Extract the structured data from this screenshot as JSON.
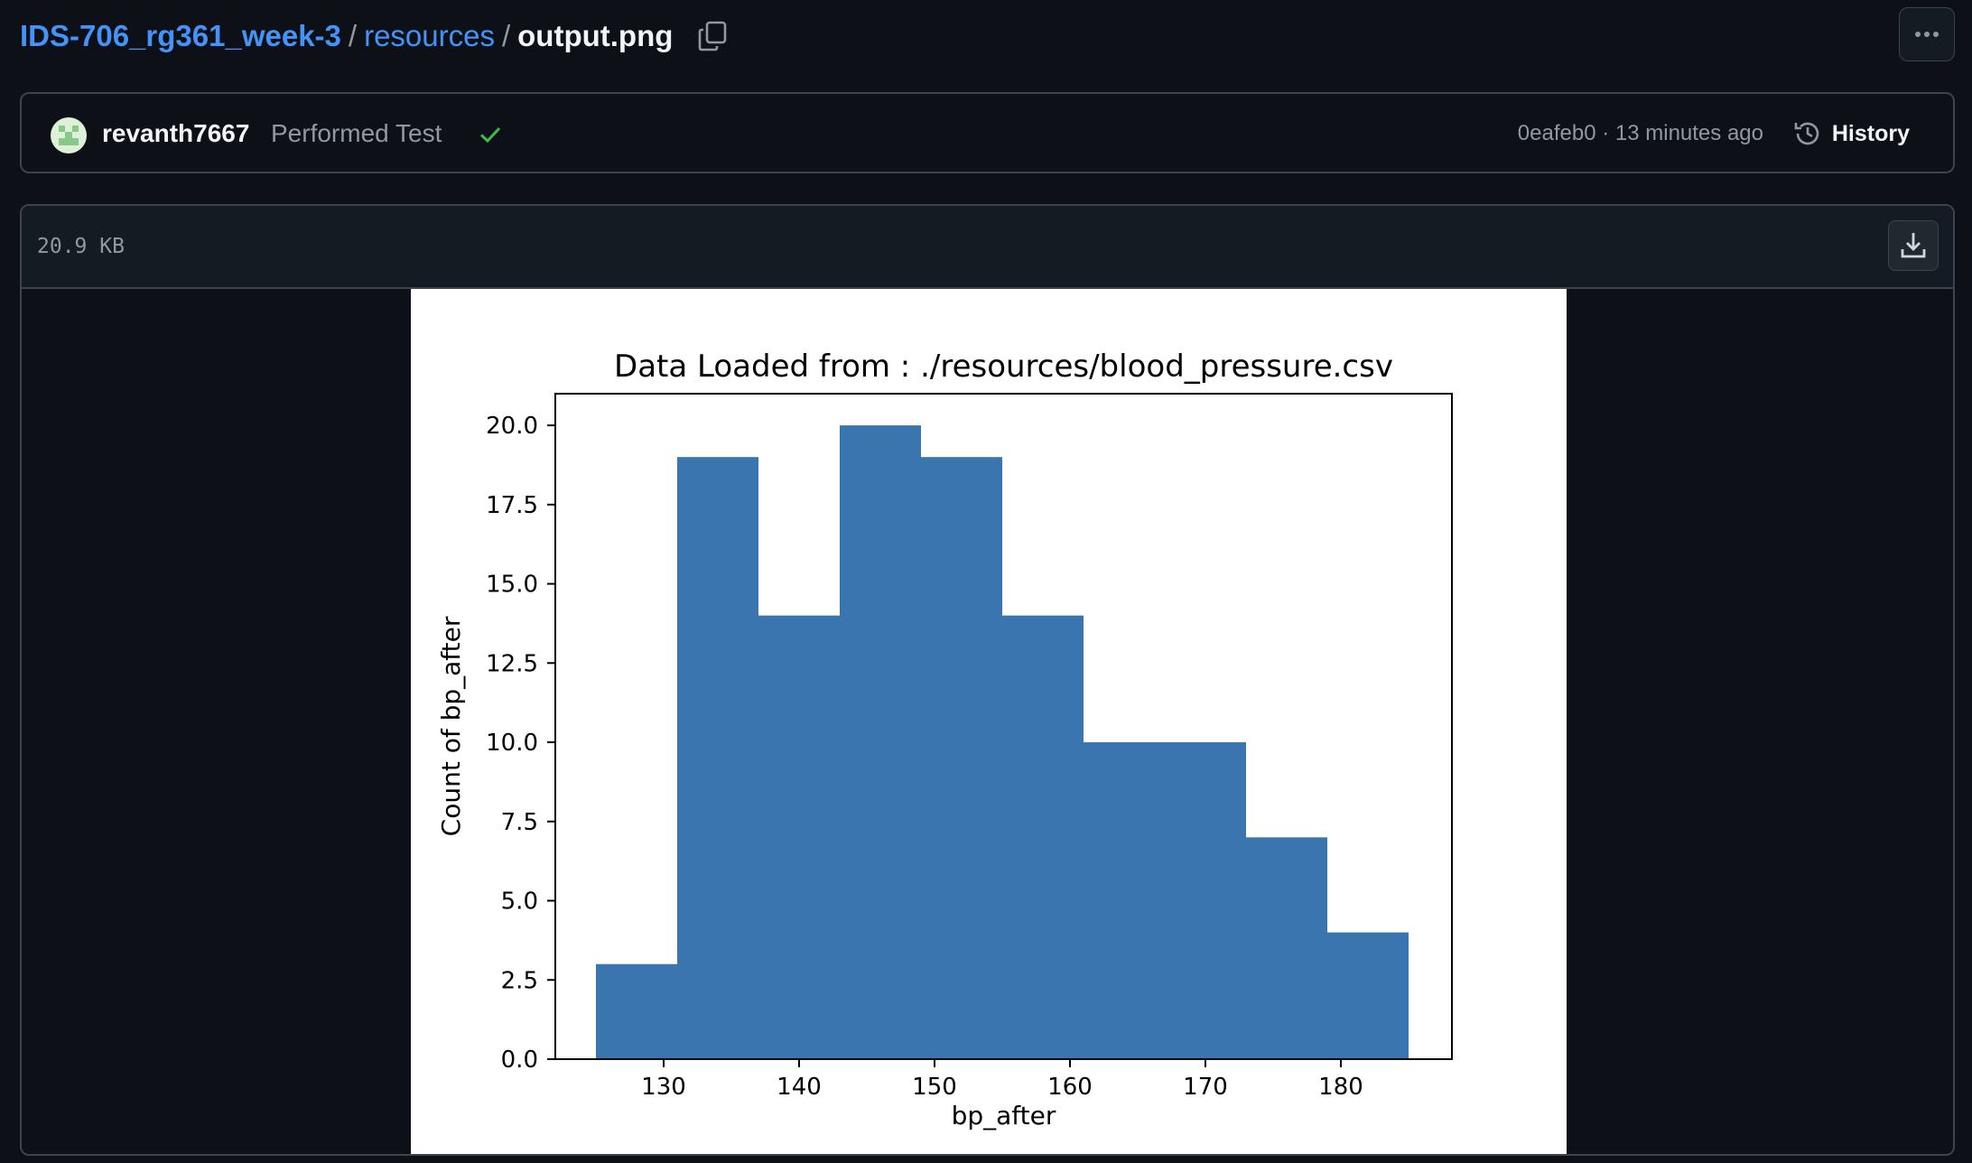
{
  "breadcrumb": {
    "repo": "IDS-706_rg361_week-3",
    "sep": "/",
    "folder": "resources",
    "file": "output.png"
  },
  "icons": {
    "copy": "copy-icon",
    "more": "kebab-horizontal-icon",
    "check": "check-icon",
    "history": "history-icon",
    "download": "download-icon"
  },
  "commit": {
    "author": "revanth7667",
    "message": "Performed Test",
    "meta": "0eafeb0 · 13 minutes ago",
    "history_label": "History"
  },
  "colors": {
    "link": "#4493f8",
    "success": "#3fb950",
    "bar": "#3b75af"
  },
  "file": {
    "size": "20.9 KB"
  },
  "chart_data": {
    "type": "bar",
    "title": "Data Loaded from : ./resources/blood_pressure.csv",
    "xlabel": "bp_after",
    "ylabel": "Count of bp_after",
    "bin_edges": [
      125,
      131,
      137,
      143,
      149,
      155,
      161,
      167,
      173,
      179,
      185
    ],
    "values": [
      3,
      19,
      14,
      20,
      19,
      14,
      10,
      10,
      7,
      4
    ],
    "xlim": [
      122,
      188.2
    ],
    "ylim": [
      0,
      21
    ],
    "xticks": [
      130,
      140,
      150,
      160,
      170,
      180
    ],
    "yticks": [
      "0.0",
      "2.5",
      "5.0",
      "7.5",
      "10.0",
      "12.5",
      "15.0",
      "17.5",
      "20.0"
    ],
    "grid": false
  }
}
